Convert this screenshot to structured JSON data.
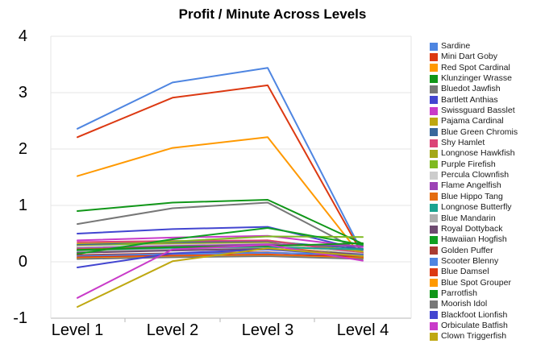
{
  "chart_data": {
    "type": "line",
    "title": "Profit / Minute Across Levels",
    "xlabel": "",
    "ylabel": "",
    "categories": [
      "Level 1",
      "Level 2",
      "Level 3",
      "Level 4"
    ],
    "ylim": [
      -1,
      4
    ],
    "yticks": [
      4,
      3,
      2,
      1,
      0,
      -1
    ],
    "grid": true,
    "legend_position": "right",
    "series": [
      {
        "name": "Sardine",
        "color": "#4E85E1",
        "values": [
          2.36,
          3.18,
          3.44,
          0.15
        ]
      },
      {
        "name": "Mini Dart Goby",
        "color": "#DC3912",
        "values": [
          2.21,
          2.91,
          3.13,
          0.12
        ]
      },
      {
        "name": "Red Spot Cardinal",
        "color": "#FF9900",
        "values": [
          1.52,
          2.02,
          2.21,
          0.07
        ]
      },
      {
        "name": "Klunzinger Wrasse",
        "color": "#109618",
        "values": [
          0.9,
          1.05,
          1.1,
          0.32
        ]
      },
      {
        "name": "Bluedot Jawfish",
        "color": "#777777",
        "values": [
          0.67,
          0.95,
          1.05,
          0.17
        ]
      },
      {
        "name": "Bartlett Anthias",
        "color": "#4245D0",
        "values": [
          0.5,
          0.58,
          0.62,
          0.21
        ]
      },
      {
        "name": "Swissguard Basslet",
        "color": "#C93BC9",
        "values": [
          0.38,
          0.43,
          0.46,
          0.26
        ]
      },
      {
        "name": "Pajama Cardinal",
        "color": "#BFA811",
        "values": [
          0.32,
          0.36,
          0.38,
          0.18
        ]
      },
      {
        "name": "Blue Green Chromis",
        "color": "#38689C",
        "values": [
          0.3,
          0.34,
          0.36,
          0.23
        ]
      },
      {
        "name": "Shy Hamlet",
        "color": "#DB4477",
        "values": [
          0.35,
          0.37,
          0.38,
          0.15
        ]
      },
      {
        "name": "Longnose Hawkfish",
        "color": "#A4A818",
        "values": [
          0.28,
          0.32,
          0.34,
          0.12
        ]
      },
      {
        "name": "Purple Firefish",
        "color": "#7FBA22",
        "values": [
          0.26,
          0.36,
          0.45,
          0.44
        ]
      },
      {
        "name": "Percula Clownfish",
        "color": "#CCCCCC",
        "values": [
          0.27,
          0.3,
          0.32,
          0.14
        ]
      },
      {
        "name": "Flame Angelfish",
        "color": "#9C43B5",
        "values": [
          0.24,
          0.28,
          0.31,
          0.28
        ]
      },
      {
        "name": "Blue Hippo Tang",
        "color": "#E46B0F",
        "values": [
          0.22,
          0.26,
          0.28,
          0.1
        ]
      },
      {
        "name": "Longnose Butterfly",
        "color": "#1BA390",
        "values": [
          0.2,
          0.24,
          0.26,
          0.22
        ]
      },
      {
        "name": "Blue Mandarin",
        "color": "#ADADAD",
        "values": [
          0.18,
          0.22,
          0.24,
          0.11
        ]
      },
      {
        "name": "Royal Dottyback",
        "color": "#6E4B70",
        "values": [
          0.16,
          0.2,
          0.23,
          0.13
        ]
      },
      {
        "name": "Hawaiian Hogfish",
        "color": "#0FA021",
        "values": [
          0.14,
          0.4,
          0.6,
          0.3
        ]
      },
      {
        "name": "Golden Puffer",
        "color": "#A93B32",
        "values": [
          0.12,
          0.15,
          0.17,
          0.09
        ]
      },
      {
        "name": "Scooter Blenny",
        "color": "#4E85E1",
        "values": [
          0.1,
          0.14,
          0.16,
          0.12
        ]
      },
      {
        "name": "Blue Damsel",
        "color": "#DC3912",
        "values": [
          0.08,
          0.11,
          0.13,
          0.08
        ]
      },
      {
        "name": "Blue Spot Grouper",
        "color": "#FF9900",
        "values": [
          0.06,
          0.09,
          0.11,
          0.06
        ]
      },
      {
        "name": "Parrotfish",
        "color": "#109618",
        "values": [
          0.21,
          0.26,
          0.28,
          0.33
        ]
      },
      {
        "name": "Moorish Idol",
        "color": "#777777",
        "values": [
          0.05,
          0.08,
          0.1,
          0.05
        ]
      },
      {
        "name": "Blackfoot Lionfish",
        "color": "#4245D0",
        "values": [
          -0.1,
          0.15,
          0.22,
          0.1
        ]
      },
      {
        "name": "Orbiculate Batfish",
        "color": "#C93BC9",
        "values": [
          -0.64,
          0.22,
          0.3,
          0.02
        ]
      },
      {
        "name": "Clown Triggerfish",
        "color": "#BFA811",
        "values": [
          -0.8,
          0.01,
          0.24,
          0.1
        ]
      }
    ]
  },
  "colors": {
    "gridline": "#E6E6E6",
    "axis_line": "#B7B7B7",
    "title_text": "#000000",
    "axis_text": "#000000",
    "legend_text": "#1A1A1A",
    "background": "#FFFFFF"
  }
}
